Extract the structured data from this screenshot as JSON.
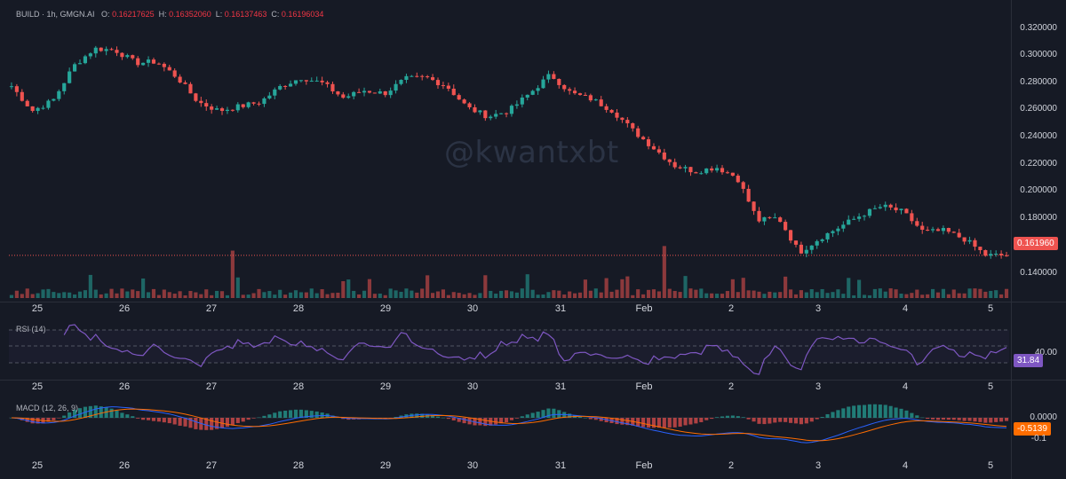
{
  "legend": {
    "symbol": "BUILD · 1h, GMGN.AI",
    "o_label": "O:",
    "o": "0.16217625",
    "h_label": "H:",
    "h": "0.16352060",
    "l_label": "L:",
    "l": "0.16137463",
    "c_label": "C:",
    "c": "0.16196034"
  },
  "watermark": "@kwantxbt",
  "price_axis": [
    "0.320000",
    "0.300000",
    "0.280000",
    "0.260000",
    "0.240000",
    "0.220000",
    "0.200000",
    "0.180000",
    "0.140000"
  ],
  "current_price": "0.161960",
  "dates": [
    "25",
    "26",
    "27",
    "28",
    "29",
    "30",
    "31",
    "Feb",
    "2",
    "3",
    "4",
    "5"
  ],
  "rsi": {
    "label": "RSI (14)",
    "level": "40.00",
    "value": "31.84"
  },
  "macd": {
    "label": "MACD (12, 26, 9)",
    "zero": "0.0000",
    "value": "-0.5139",
    "neg": "-0.1"
  },
  "colors": {
    "up": "#26a69a",
    "down": "#ef5350",
    "bg": "#161a25",
    "rsi": "#7e57c2",
    "macd": "#2962ff",
    "signal": "#ff6d00"
  },
  "chart_data": {
    "type": "candlestick",
    "interval": "1h",
    "ylim": [
      0.13,
      0.33
    ],
    "close_path": [
      0.279,
      0.262,
      0.269,
      0.293,
      0.305,
      0.304,
      0.295,
      0.296,
      0.285,
      0.268,
      0.262,
      0.265,
      0.268,
      0.279,
      0.285,
      0.281,
      0.271,
      0.276,
      0.274,
      0.284,
      0.285,
      0.279,
      0.264,
      0.258,
      0.262,
      0.274,
      0.287,
      0.274,
      0.27,
      0.262,
      0.248,
      0.236,
      0.224,
      0.22,
      0.223,
      0.216,
      0.186,
      0.188,
      0.164,
      0.174,
      0.182,
      0.19,
      0.196,
      0.192,
      0.178,
      0.179,
      0.173,
      0.162,
      0.162
    ]
  }
}
